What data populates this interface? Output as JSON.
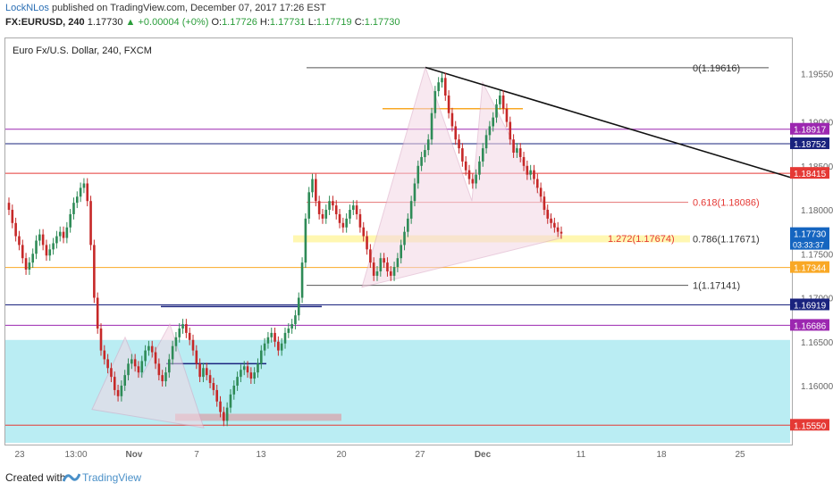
{
  "header": {
    "author": "LockNLos",
    "published": "published on TradingView.com, December 07, 2017 17:26 EST",
    "symbol": "FX:EURUSD, 240",
    "last": "1.17730",
    "change": "▲ +0.00004 (+0%)",
    "o_label": "O:",
    "o": "1.17726",
    "h_label": "H:",
    "h": "1.17731",
    "l_label": "L:",
    "l": "1.17719",
    "c_label": "C:",
    "c": "1.17730"
  },
  "footer": {
    "created_with": "Created with",
    "brand": "TradingView"
  },
  "colors": {
    "up": "#2e8b57",
    "down": "#c62828",
    "zone": "#b2ebf2",
    "red_line": "#e53935",
    "blue_line": "#1a237e",
    "purple_line": "#b388ff",
    "orange_line": "#f9a825",
    "pattern_fill": "#f3d6e4"
  },
  "chart_data": {
    "type": "candlestick",
    "title": "Euro Fx/U.S. Dollar, 240, FXCM",
    "ylim": [
      1.1535,
      1.1995
    ],
    "y_ticks": [
      1.1955,
      1.19,
      1.185,
      1.18,
      1.175,
      1.17,
      1.165,
      1.16
    ],
    "x_ticks": [
      "23",
      "13:00",
      "Nov",
      "7",
      "13",
      "20",
      "27",
      "Dec",
      "11",
      "18",
      "25"
    ],
    "current_price": "1.17730",
    "countdown": "03:33:37",
    "price_levels": [
      {
        "value": 1.18917,
        "label": "1.18917",
        "color": "#9c27b0"
      },
      {
        "value": 1.18752,
        "label": "1.18752",
        "color": "#1a237e"
      },
      {
        "value": 1.18415,
        "label": "1.18415",
        "color": "#e53935"
      },
      {
        "value": 1.17344,
        "label": "1.17344",
        "color": "#f9a825"
      },
      {
        "value": 1.16919,
        "label": "1.16919",
        "color": "#1a237e"
      },
      {
        "value": 1.16686,
        "label": "1.16686",
        "color": "#9c27b0"
      },
      {
        "value": 1.1555,
        "label": "1.15550",
        "color": "#e53935"
      }
    ],
    "fib_labels": [
      {
        "text": "0(1.19616)",
        "value": 1.19616,
        "color": "#333"
      },
      {
        "text": "0.618(1.18086)",
        "value": 1.18086,
        "color": "#e53935"
      },
      {
        "text": "0.786(1.17671)",
        "value": 1.17671,
        "color": "#333"
      },
      {
        "text": "1.272(1.17674)",
        "value": 1.17674,
        "color": "#e53935"
      },
      {
        "text": "1(1.17141)",
        "value": 1.17141,
        "color": "#333"
      }
    ],
    "closes": [
      1.18,
      1.1785,
      1.177,
      1.176,
      1.1745,
      1.1732,
      1.174,
      1.175,
      1.1765,
      1.1772,
      1.176,
      1.1748,
      1.1755,
      1.1762,
      1.177,
      1.1775,
      1.1768,
      1.178,
      1.1795,
      1.1808,
      1.1815,
      1.1825,
      1.183,
      1.181,
      1.176,
      1.17,
      1.1665,
      1.164,
      1.163,
      1.162,
      1.161,
      1.1595,
      1.1588,
      1.16,
      1.1612,
      1.1625,
      1.163,
      1.1622,
      1.1615,
      1.1628,
      1.164,
      1.1645,
      1.1638,
      1.1625,
      1.1612,
      1.1605,
      1.1615,
      1.163,
      1.1645,
      1.1655,
      1.1665,
      1.167,
      1.166,
      1.1652,
      1.164,
      1.1625,
      1.161,
      1.162,
      1.1612,
      1.1603,
      1.1595,
      1.1582,
      1.157,
      1.156,
      1.1575,
      1.159,
      1.16,
      1.161,
      1.1618,
      1.1622,
      1.1615,
      1.1608,
      1.1615,
      1.1625,
      1.164,
      1.1648,
      1.1655,
      1.166,
      1.165,
      1.164,
      1.1648,
      1.166,
      1.1665,
      1.167,
      1.168,
      1.17,
      1.174,
      1.179,
      1.182,
      1.1835,
      1.181,
      1.1795,
      1.179,
      1.18,
      1.181,
      1.1805,
      1.1795,
      1.1785,
      1.178,
      1.179,
      1.18,
      1.1805,
      1.1795,
      1.178,
      1.177,
      1.1755,
      1.174,
      1.1725,
      1.173,
      1.1745,
      1.174,
      1.173,
      1.1725,
      1.1735,
      1.1745,
      1.176,
      1.1775,
      1.179,
      1.181,
      1.183,
      1.185,
      1.186,
      1.1868,
      1.188,
      1.191,
      1.1935,
      1.1945,
      1.195,
      1.193,
      1.191,
      1.1895,
      1.188,
      1.187,
      1.1855,
      1.1845,
      1.1835,
      1.183,
      1.184,
      1.1855,
      1.187,
      1.1885,
      1.1895,
      1.1905,
      1.192,
      1.193,
      1.1915,
      1.19,
      1.188,
      1.1865,
      1.187,
      1.186,
      1.185,
      1.184,
      1.1845,
      1.1835,
      1.1825,
      1.1815,
      1.18,
      1.179,
      1.1785,
      1.178,
      1.1775,
      1.1773
    ]
  }
}
